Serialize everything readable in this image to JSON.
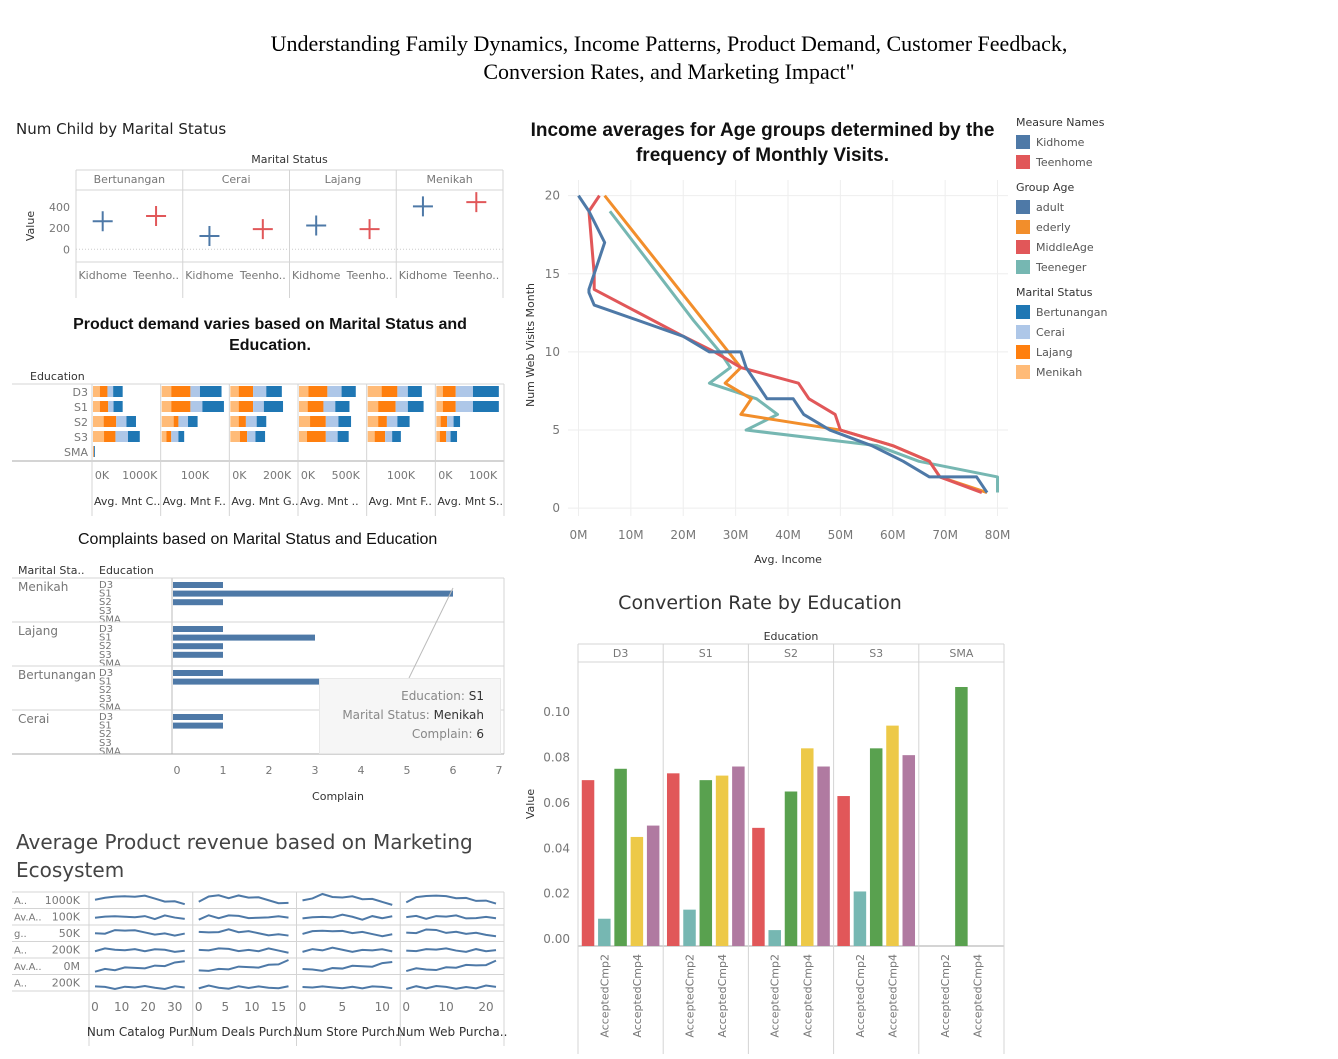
{
  "page_title_line1": "Understanding Family Dynamics, Income Patterns, Product Demand, Customer Feedback,",
  "page_title_line2": "Conversion Rates, and Marketing Impact\"",
  "legend": {
    "measure_names": {
      "title": "Measure Names",
      "items": [
        {
          "label": "Kidhome",
          "color": "#4e79a7"
        },
        {
          "label": "Teenhome",
          "color": "#e15759"
        }
      ]
    },
    "group_age": {
      "title": "Group Age",
      "items": [
        {
          "label": "adult",
          "color": "#4e79a7"
        },
        {
          "label": "ederly",
          "color": "#f28e2b"
        },
        {
          "label": "MiddleAge",
          "color": "#e15759"
        },
        {
          "label": "Teeneger",
          "color": "#76b7b2"
        }
      ]
    },
    "marital_status": {
      "title": "Marital Status",
      "items": [
        {
          "label": "Bertunangan",
          "color": "#1f77b4"
        },
        {
          "label": "Cerai",
          "color": "#aec7e8"
        },
        {
          "label": "Lajang",
          "color": "#ff7f0e"
        },
        {
          "label": "Menikah",
          "color": "#ffbb78"
        }
      ]
    }
  },
  "tooltip": {
    "education_label": "Education:",
    "education_value": "S1",
    "marital_label": "Marital Status:",
    "marital_value": "Menikah",
    "complain_label": "Complain:",
    "complain_value": "6"
  },
  "chart_data": [
    {
      "id": "num-child",
      "type": "scatter",
      "title": "Num Child by Marital Status",
      "column_header": "Marital Status",
      "ylabel": "Value",
      "ylim": [
        -120,
        560
      ],
      "yticks": [
        0,
        200,
        400
      ],
      "x_labels": [
        "Kidhome",
        "Teenho.."
      ],
      "series": [
        {
          "panel": "Bertunangan",
          "kidhome": 265,
          "teenhome": 315
        },
        {
          "panel": "Cerai",
          "kidhome": 125,
          "teenhome": 190
        },
        {
          "panel": "Lajang",
          "kidhome": 225,
          "teenhome": 190
        },
        {
          "panel": "Menikah",
          "kidhome": 405,
          "teenhome": 445
        }
      ]
    },
    {
      "id": "product-demand",
      "type": "bar",
      "stacked": true,
      "title": "Product demand varies based on Marital Status and Education.",
      "row_header": "Education",
      "rows": [
        "D3",
        "S1",
        "S2",
        "S3",
        "SMA"
      ],
      "stack_order": [
        "Menikah",
        "Lajang",
        "Cerai",
        "Bertunangan"
      ],
      "columns": [
        {
          "label": "Avg. Mnt C..",
          "ticks": [
            "0K",
            "1000K"
          ],
          "max": 1700,
          "values": [
            [
              180,
              200,
              150,
              250
            ],
            [
              180,
              220,
              140,
              240
            ],
            [
              280,
              330,
              270,
              250
            ],
            [
              290,
              300,
              330,
              310
            ],
            [
              10,
              10,
              10,
              20
            ]
          ]
        },
        {
          "label": "Avg. Mnt F..",
          "ticks": [
            "100K"
          ],
          "max": 135,
          "values": [
            [
              20,
              40,
              20,
              45
            ],
            [
              20,
              40,
              25,
              45
            ],
            [
              25,
              10,
              20,
              20
            ],
            [
              10,
              10,
              15,
              12
            ],
            [
              0,
              0,
              0,
              0
            ]
          ]
        },
        {
          "label": "Avg. Mnt G..",
          "ticks": [
            "0K",
            "200K"
          ],
          "max": 270,
          "values": [
            [
              35,
              60,
              55,
              65
            ],
            [
              35,
              60,
              45,
              80
            ],
            [
              35,
              30,
              45,
              40
            ],
            [
              40,
              30,
              35,
              40
            ],
            [
              0,
              0,
              0,
              0
            ]
          ]
        },
        {
          "label": "Avg. Mnt ..",
          "ticks": [
            "0K",
            "500K"
          ],
          "max": 820,
          "values": [
            [
              120,
              240,
              180,
              180
            ],
            [
              110,
              200,
              150,
              180
            ],
            [
              140,
              200,
              160,
              160
            ],
            [
              100,
              240,
              150,
              140
            ],
            [
              0,
              0,
              0,
              0
            ]
          ]
        },
        {
          "label": "Avg. Mnt F..",
          "ticks": [
            "100K"
          ],
          "max": 185,
          "values": [
            [
              40,
              45,
              30,
              40
            ],
            [
              30,
              50,
              35,
              45
            ],
            [
              30,
              25,
              30,
              35
            ],
            [
              20,
              30,
              20,
              25
            ],
            [
              0,
              0,
              0,
              0
            ]
          ]
        },
        {
          "label": "Avg. Mnt S..",
          "ticks": [
            "0K",
            "100K"
          ],
          "max": 150,
          "values": [
            [
              15,
              30,
              40,
              60
            ],
            [
              15,
              30,
              40,
              60
            ],
            [
              10,
              15,
              15,
              15
            ],
            [
              8,
              15,
              10,
              15
            ],
            [
              0,
              0,
              0,
              0
            ]
          ]
        }
      ]
    },
    {
      "id": "complaints",
      "type": "bar",
      "orientation": "horizontal",
      "title": "Complaints based on Marital Status and Education",
      "header_marital": "Marital Sta..",
      "header_education": "Education",
      "xlabel": "Complain",
      "xlim": [
        0,
        7
      ],
      "xticks": [
        0,
        1,
        2,
        3,
        4,
        5,
        6,
        7
      ],
      "groups": [
        {
          "marital": "Menikah",
          "rows": [
            {
              "edu": "D3",
              "value": 1
            },
            {
              "edu": "S1",
              "value": 6
            },
            {
              "edu": "S2",
              "value": 1
            },
            {
              "edu": "S3",
              "value": 0
            },
            {
              "edu": "SMA",
              "value": 0
            }
          ]
        },
        {
          "marital": "Lajang",
          "rows": [
            {
              "edu": "D3",
              "value": 1
            },
            {
              "edu": "S1",
              "value": 3
            },
            {
              "edu": "S2",
              "value": 1
            },
            {
              "edu": "S3",
              "value": 1
            },
            {
              "edu": "SMA",
              "value": 0
            }
          ]
        },
        {
          "marital": "Bertunangan",
          "rows": [
            {
              "edu": "D3",
              "value": 1
            },
            {
              "edu": "S1",
              "value": 4
            },
            {
              "edu": "S2",
              "value": 0
            },
            {
              "edu": "S3",
              "value": 0
            },
            {
              "edu": "SMA",
              "value": 0
            }
          ]
        },
        {
          "marital": "Cerai",
          "rows": [
            {
              "edu": "D3",
              "value": 1
            },
            {
              "edu": "S1",
              "value": 1
            },
            {
              "edu": "S2",
              "value": 0
            },
            {
              "edu": "S3",
              "value": 0
            },
            {
              "edu": "SMA",
              "value": 0
            }
          ]
        }
      ]
    },
    {
      "id": "marketing-ecosystem",
      "type": "line",
      "title": "Average Product revenue based on Marketing Ecosystem",
      "row_labels": [
        "A..",
        "Av.A..",
        "g..",
        "A..",
        "Av.A..",
        "A.."
      ],
      "row_ticks": [
        "1000K",
        "100K",
        "50K",
        "200K",
        "0M",
        "200K"
      ],
      "columns": [
        {
          "label": "Num Catalog Pur..",
          "xticks": [
            0,
            10,
            20,
            30
          ]
        },
        {
          "label": "Num Deals Purch..",
          "xticks": [
            0,
            5,
            10,
            15
          ]
        },
        {
          "label": "Num Store Purch..",
          "xticks": [
            0,
            5,
            10
          ]
        },
        {
          "label": "Num Web Purcha..",
          "xticks": [
            0,
            10,
            20
          ]
        }
      ]
    },
    {
      "id": "income-visits",
      "type": "line",
      "title": "Income averages for Age groups determined by the frequency of Monthly Visits.",
      "xlabel": "Avg. Income",
      "ylabel": "Num Web Visits Month",
      "xlim": [
        -2,
        82
      ],
      "ylim": [
        -0.5,
        21
      ],
      "xticks": [
        0,
        10,
        20,
        30,
        40,
        50,
        60,
        70,
        80
      ],
      "xtick_labels": [
        "0M",
        "10M",
        "20M",
        "30M",
        "40M",
        "50M",
        "60M",
        "70M",
        "80M"
      ],
      "yticks": [
        0,
        5,
        10,
        15,
        20
      ],
      "series": [
        {
          "name": "adult",
          "points": [
            [
              0,
              20
            ],
            [
              2,
              19
            ],
            [
              5,
              17
            ],
            [
              2,
              14
            ],
            [
              2,
              13.8
            ],
            [
              3,
              13
            ],
            [
              20,
              11
            ],
            [
              25,
              10
            ],
            [
              31,
              10
            ],
            [
              32,
              9
            ],
            [
              36,
              7
            ],
            [
              41,
              7
            ],
            [
              43,
              6
            ],
            [
              48,
              5
            ],
            [
              56,
              4
            ],
            [
              62,
              3
            ],
            [
              67,
              2
            ],
            [
              76,
              2
            ],
            [
              78,
              1
            ]
          ]
        },
        {
          "name": "ederly",
          "points": [
            [
              5,
              20
            ],
            [
              31,
              9
            ],
            [
              28,
              8
            ],
            [
              33,
              7
            ],
            [
              31,
              6
            ],
            [
              50,
              5
            ],
            [
              60,
              4
            ],
            [
              67,
              3
            ],
            [
              69,
              2
            ],
            [
              78,
              1
            ]
          ]
        },
        {
          "name": "MiddleAge",
          "points": [
            [
              4,
              20
            ],
            [
              2,
              19
            ],
            [
              3,
              15
            ],
            [
              3,
              14
            ],
            [
              20,
              11
            ],
            [
              26,
              10
            ],
            [
              31,
              9
            ],
            [
              42,
              8
            ],
            [
              44,
              7
            ],
            [
              49,
              6
            ],
            [
              50,
              5
            ],
            [
              60,
              4
            ],
            [
              67,
              3
            ],
            [
              69,
              2
            ],
            [
              77,
              1
            ]
          ]
        },
        {
          "name": "Teeneger",
          "points": [
            [
              6,
              19
            ],
            [
              22,
              12
            ],
            [
              27,
              10
            ],
            [
              29,
              9
            ],
            [
              25,
              8
            ],
            [
              34,
              7
            ],
            [
              38,
              6
            ],
            [
              32,
              5
            ],
            [
              57,
              4
            ],
            [
              65,
              3
            ],
            [
              80,
              2
            ],
            [
              80,
              1
            ]
          ]
        }
      ]
    },
    {
      "id": "conversion-rate",
      "type": "bar",
      "title": "Convertion Rate by Education",
      "column_header": "Education",
      "ylabel": "Value",
      "ylim": [
        -0.003,
        0.122
      ],
      "yticks": [
        0,
        0.02,
        0.04,
        0.06,
        0.08,
        0.1
      ],
      "ytick_labels": [
        "0.00",
        "0.02",
        "0.04",
        "0.06",
        "0.08",
        "0.10"
      ],
      "x_labels": [
        "AcceptedCmp2",
        "AcceptedCmp4"
      ],
      "bar_colors": [
        "#e15759",
        "#76b7b2",
        "#59a14f",
        "#edc948",
        "#b07aa1"
      ],
      "panels": [
        {
          "label": "D3",
          "values": [
            0.07,
            0.009,
            0.075,
            0.045,
            0.05
          ]
        },
        {
          "label": "S1",
          "values": [
            0.073,
            0.013,
            0.07,
            0.072,
            0.076
          ]
        },
        {
          "label": "S2",
          "values": [
            0.049,
            0.004,
            0.065,
            0.084,
            0.076
          ]
        },
        {
          "label": "S3",
          "values": [
            0.063,
            0.021,
            0.084,
            0.094,
            0.081
          ]
        },
        {
          "label": "SMA",
          "values": [
            0,
            0,
            0.111,
            0,
            0
          ]
        }
      ]
    }
  ]
}
